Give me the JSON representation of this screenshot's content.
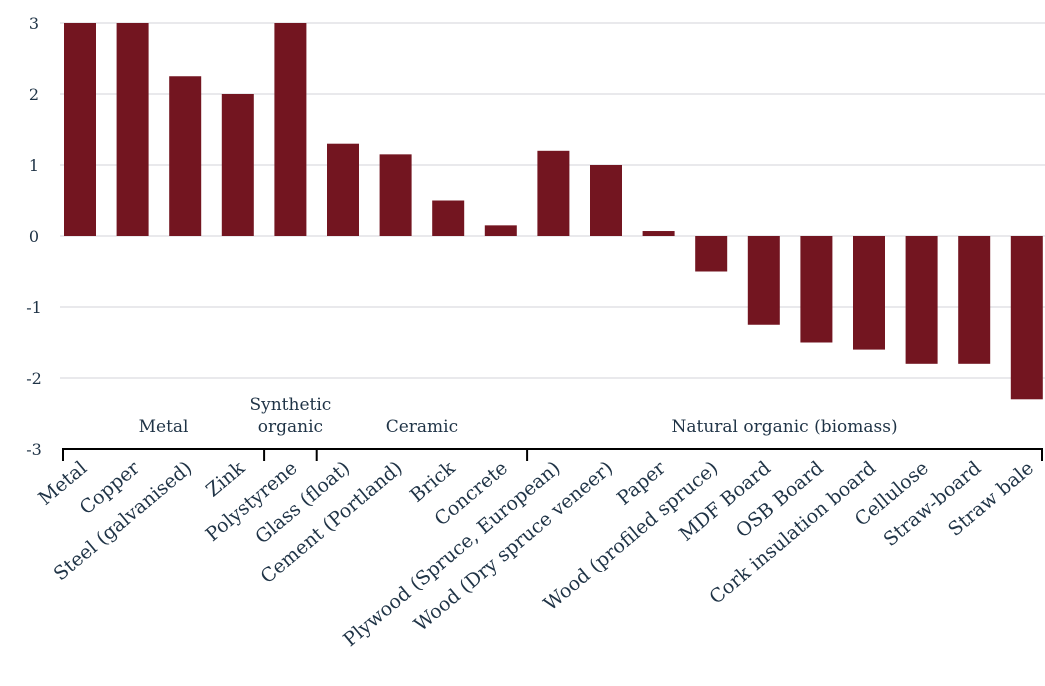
{
  "chart_data": {
    "type": "bar",
    "categories": [
      "Metal",
      "Copper",
      "Steel (galvanised)",
      "Zink",
      "Polystyrene",
      "Glass (float)",
      "Cement (Portland)",
      "Brick",
      "Concrete",
      "Plywood (Spruce, European)",
      "Wood (Dry spruce veneer)",
      "Paper",
      "Wood (profiled spruce)",
      "MDF Board",
      "OSB Board",
      "Cork insulation board",
      "Cellulose",
      "Straw-board",
      "Straw bale"
    ],
    "values": [
      3,
      3,
      2.25,
      2,
      3,
      1.3,
      1.15,
      0.5,
      0.15,
      1.2,
      1,
      0.07,
      -0.5,
      -1.25,
      -1.5,
      -1.6,
      -1.8,
      -1.8,
      -2.3
    ],
    "ylim": [
      -3,
      3
    ],
    "yticks": [
      "3",
      "2",
      "1",
      "0",
      "-1",
      "-2",
      "-3"
    ],
    "grid": true,
    "bar_color": "#731520",
    "groups": [
      {
        "label_lines": [
          "Metal"
        ],
        "start": 0,
        "end": 3
      },
      {
        "label_lines": [
          "Synthetic",
          "organic"
        ],
        "start": 4,
        "end": 4
      },
      {
        "label_lines": [
          "Ceramic"
        ],
        "start": 5,
        "end": 8
      },
      {
        "label_lines": [
          "Natural organic (biomass)"
        ],
        "start": 9,
        "end": 18
      }
    ]
  }
}
